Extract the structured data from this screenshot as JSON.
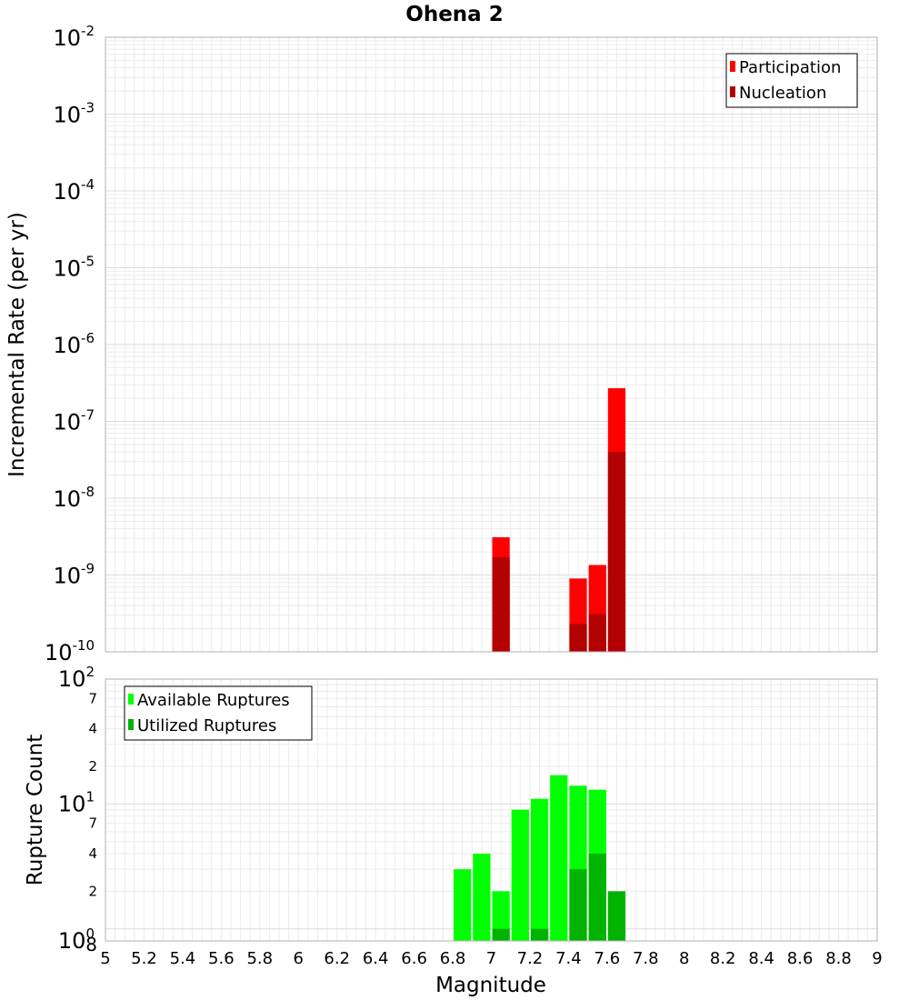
{
  "chart_data": [
    {
      "type": "bar",
      "title": "Ohena 2",
      "ylabel": "Incremental Rate (per yr)",
      "yscale": "log",
      "ylim": [
        1e-10,
        0.01
      ],
      "xlim": [
        5,
        9
      ],
      "grid": true,
      "legend_position": "top-right",
      "y_ticks": [
        {
          "mantissa": "10",
          "exp": "-2"
        },
        {
          "mantissa": "10",
          "exp": "-3"
        },
        {
          "mantissa": "10",
          "exp": "-4"
        },
        {
          "mantissa": "10",
          "exp": "-5"
        },
        {
          "mantissa": "10",
          "exp": "-6"
        },
        {
          "mantissa": "10",
          "exp": "-7"
        },
        {
          "mantissa": "10",
          "exp": "-8"
        },
        {
          "mantissa": "10",
          "exp": "-9"
        },
        {
          "mantissa": "10",
          "exp": "-10"
        }
      ],
      "x": [
        7.05,
        7.45,
        7.55,
        7.65
      ],
      "series": [
        {
          "name": "Participation",
          "color": "#ff0000",
          "values": [
            3.1e-09,
            9e-10,
            1.35e-09,
            2.7e-07
          ]
        },
        {
          "name": "Nucleation",
          "color": "#b30000",
          "values": [
            1.7e-09,
            2.3e-10,
            3.1e-10,
            4e-08
          ]
        }
      ]
    },
    {
      "type": "bar",
      "xlabel": "Magnitude",
      "ylabel": "Rupture Count",
      "yscale": "log",
      "ylim": [
        0.8,
        100
      ],
      "xlim": [
        5,
        9
      ],
      "grid": true,
      "legend_position": "top-left",
      "y_ticks": [
        {
          "mantissa": "10",
          "exp": "2"
        },
        {
          "mantissa": "10",
          "exp": "1"
        },
        {
          "mantissa": "10",
          "exp": "0"
        }
      ],
      "y_minor_labels": [
        "7",
        "4",
        "2",
        "7",
        "4",
        "2",
        "8"
      ],
      "x_ticks": [
        "5",
        "5.2",
        "5.4",
        "5.6",
        "5.8",
        "6",
        "6.2",
        "6.4",
        "6.6",
        "6.8",
        "7",
        "7.2",
        "7.4",
        "7.6",
        "7.8",
        "8",
        "8.2",
        "8.4",
        "8.6",
        "8.8",
        "9"
      ],
      "x": [
        6.85,
        6.95,
        7.05,
        7.15,
        7.25,
        7.35,
        7.45,
        7.55,
        7.65
      ],
      "series": [
        {
          "name": "Available Ruptures",
          "color": "#00ff00",
          "values": [
            3,
            4,
            2,
            9,
            11,
            17,
            14,
            13,
            0
          ]
        },
        {
          "name": "Utilized Ruptures",
          "color": "#00b300",
          "values": [
            0,
            0,
            1,
            0,
            1,
            0,
            3,
            4,
            2
          ]
        }
      ]
    }
  ]
}
